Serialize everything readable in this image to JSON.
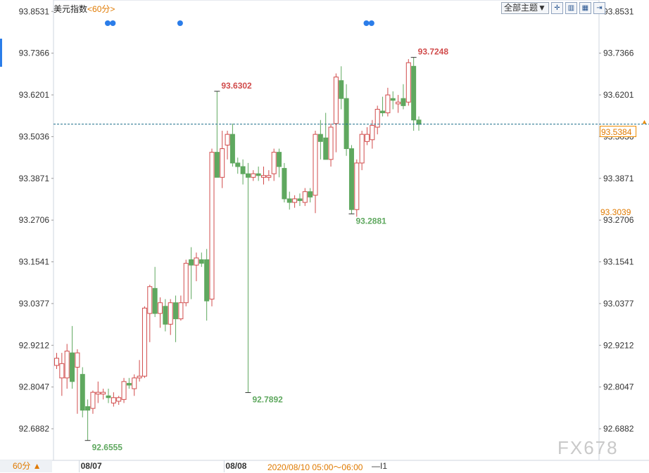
{
  "chart_data": {
    "type": "candlestick",
    "title": "美元指数",
    "period_label": "<60分>",
    "ylim": [
      92.6,
      93.885
    ],
    "y_ticks": [
      "93.8531",
      "93.7366",
      "93.6201",
      "93.5036",
      "93.3871",
      "93.2706",
      "93.1541",
      "93.0377",
      "92.9212",
      "92.8047",
      "92.6882"
    ],
    "x_labels": [
      {
        "label": "08/07",
        "index": 6
      },
      {
        "label": "08/08",
        "index": 34
      }
    ],
    "candles": [
      {
        "o": 92.865,
        "h": 92.9,
        "l": 92.855,
        "c": 92.885
      },
      {
        "o": 92.83,
        "h": 92.9,
        "l": 92.78,
        "c": 92.87
      },
      {
        "o": 92.83,
        "h": 92.925,
        "l": 92.8,
        "c": 92.905
      },
      {
        "o": 92.9,
        "h": 92.975,
        "l": 92.8,
        "c": 92.82
      },
      {
        "o": 92.86,
        "h": 92.91,
        "l": 92.73,
        "c": 92.9
      },
      {
        "o": 92.84,
        "h": 92.86,
        "l": 92.72,
        "c": 92.74
      },
      {
        "o": 92.75,
        "h": 92.77,
        "l": 92.656,
        "c": 92.74
      },
      {
        "o": 92.745,
        "h": 92.795,
        "l": 92.73,
        "c": 92.79
      },
      {
        "o": 92.785,
        "h": 92.82,
        "l": 92.76,
        "c": 92.79
      },
      {
        "o": 92.785,
        "h": 92.8,
        "l": 92.77,
        "c": 92.79
      },
      {
        "o": 92.78,
        "h": 92.8,
        "l": 92.76,
        "c": 92.775
      },
      {
        "o": 92.76,
        "h": 92.79,
        "l": 92.75,
        "c": 92.775
      },
      {
        "o": 92.765,
        "h": 92.78,
        "l": 92.755,
        "c": 92.775
      },
      {
        "o": 92.77,
        "h": 92.83,
        "l": 92.76,
        "c": 92.82
      },
      {
        "o": 92.815,
        "h": 92.83,
        "l": 92.8,
        "c": 92.81
      },
      {
        "o": 92.8,
        "h": 92.84,
        "l": 92.78,
        "c": 92.83
      },
      {
        "o": 92.83,
        "h": 92.88,
        "l": 92.82,
        "c": 92.835
      },
      {
        "o": 92.835,
        "h": 93.03,
        "l": 92.83,
        "c": 93.025
      },
      {
        "o": 93.01,
        "h": 93.09,
        "l": 92.93,
        "c": 93.085
      },
      {
        "o": 93.08,
        "h": 93.14,
        "l": 93.0,
        "c": 93.01
      },
      {
        "o": 93.01,
        "h": 93.055,
        "l": 92.97,
        "c": 93.04
      },
      {
        "o": 93.03,
        "h": 93.05,
        "l": 92.96,
        "c": 92.98
      },
      {
        "o": 92.98,
        "h": 93.05,
        "l": 92.95,
        "c": 93.04
      },
      {
        "o": 93.04,
        "h": 93.06,
        "l": 92.93,
        "c": 92.995
      },
      {
        "o": 92.995,
        "h": 93.06,
        "l": 92.99,
        "c": 93.04
      },
      {
        "o": 93.04,
        "h": 93.16,
        "l": 93.03,
        "c": 93.15
      },
      {
        "o": 93.16,
        "h": 93.195,
        "l": 93.05,
        "c": 93.145
      },
      {
        "o": 93.145,
        "h": 93.18,
        "l": 93.1,
        "c": 93.165
      },
      {
        "o": 93.16,
        "h": 93.18,
        "l": 93.14,
        "c": 93.15
      },
      {
        "o": 93.16,
        "h": 93.19,
        "l": 92.99,
        "c": 93.045
      },
      {
        "o": 93.05,
        "h": 93.47,
        "l": 93.03,
        "c": 93.46
      },
      {
        "o": 93.46,
        "h": 93.63,
        "l": 93.39,
        "c": 93.39
      },
      {
        "o": 93.39,
        "h": 93.52,
        "l": 93.36,
        "c": 93.47
      },
      {
        "o": 93.48,
        "h": 93.52,
        "l": 93.44,
        "c": 93.51
      },
      {
        "o": 93.51,
        "h": 93.54,
        "l": 93.42,
        "c": 93.43
      },
      {
        "o": 93.43,
        "h": 93.445,
        "l": 93.4,
        "c": 93.42
      },
      {
        "o": 93.42,
        "h": 93.44,
        "l": 93.37,
        "c": 93.4
      },
      {
        "o": 93.4,
        "h": 93.43,
        "l": 92.789,
        "c": 93.39
      },
      {
        "o": 93.39,
        "h": 93.41,
        "l": 93.38,
        "c": 93.4
      },
      {
        "o": 93.4,
        "h": 93.42,
        "l": 93.38,
        "c": 93.395
      },
      {
        "o": 93.39,
        "h": 93.42,
        "l": 93.37,
        "c": 93.395
      },
      {
        "o": 93.39,
        "h": 93.41,
        "l": 93.38,
        "c": 93.395
      },
      {
        "o": 93.4,
        "h": 93.47,
        "l": 93.38,
        "c": 93.46
      },
      {
        "o": 93.46,
        "h": 93.47,
        "l": 93.39,
        "c": 93.42
      },
      {
        "o": 93.415,
        "h": 93.43,
        "l": 93.32,
        "c": 93.33
      },
      {
        "o": 93.33,
        "h": 93.35,
        "l": 93.3,
        "c": 93.32
      },
      {
        "o": 93.32,
        "h": 93.34,
        "l": 93.305,
        "c": 93.33
      },
      {
        "o": 93.33,
        "h": 93.345,
        "l": 93.31,
        "c": 93.325
      },
      {
        "o": 93.32,
        "h": 93.36,
        "l": 93.31,
        "c": 93.35
      },
      {
        "o": 93.35,
        "h": 93.36,
        "l": 93.32,
        "c": 93.335
      },
      {
        "o": 93.34,
        "h": 93.52,
        "l": 93.29,
        "c": 93.51
      },
      {
        "o": 93.51,
        "h": 93.55,
        "l": 93.44,
        "c": 93.49
      },
      {
        "o": 93.5,
        "h": 93.57,
        "l": 93.44,
        "c": 93.44
      },
      {
        "o": 93.44,
        "h": 93.54,
        "l": 93.42,
        "c": 93.53
      },
      {
        "o": 93.54,
        "h": 93.68,
        "l": 93.46,
        "c": 93.67
      },
      {
        "o": 93.66,
        "h": 93.7,
        "l": 93.58,
        "c": 93.61
      },
      {
        "o": 93.61,
        "h": 93.65,
        "l": 93.45,
        "c": 93.47
      },
      {
        "o": 93.47,
        "h": 93.48,
        "l": 93.288,
        "c": 93.3
      },
      {
        "o": 93.3,
        "h": 93.44,
        "l": 93.28,
        "c": 93.43
      },
      {
        "o": 93.43,
        "h": 93.52,
        "l": 93.41,
        "c": 93.51
      },
      {
        "o": 93.49,
        "h": 93.53,
        "l": 93.48,
        "c": 93.51
      },
      {
        "o": 93.495,
        "h": 93.55,
        "l": 93.47,
        "c": 93.535
      },
      {
        "o": 93.53,
        "h": 93.59,
        "l": 93.51,
        "c": 93.58
      },
      {
        "o": 93.575,
        "h": 93.615,
        "l": 93.56,
        "c": 93.57
      },
      {
        "o": 93.57,
        "h": 93.64,
        "l": 93.56,
        "c": 93.62
      },
      {
        "o": 93.61,
        "h": 93.63,
        "l": 93.58,
        "c": 93.605
      },
      {
        "o": 93.595,
        "h": 93.62,
        "l": 93.57,
        "c": 93.6
      },
      {
        "o": 93.61,
        "h": 93.65,
        "l": 93.58,
        "c": 93.59
      },
      {
        "o": 93.6,
        "h": 93.72,
        "l": 93.59,
        "c": 93.71
      },
      {
        "o": 93.7,
        "h": 93.725,
        "l": 93.52,
        "c": 93.55
      },
      {
        "o": 93.55,
        "h": 93.56,
        "l": 93.52,
        "c": 93.538
      }
    ],
    "annotations": [
      {
        "label": "93.6302",
        "index": 31,
        "value": 93.6302,
        "type": "high"
      },
      {
        "label": "93.7248",
        "index": 69,
        "value": 93.7248,
        "type": "high"
      },
      {
        "label": "92.6555",
        "index": 6,
        "value": 92.6555,
        "type": "low"
      },
      {
        "label": "92.7892",
        "index": 37,
        "value": 92.7892,
        "type": "low"
      },
      {
        "label": "93.2881",
        "index": 57,
        "value": 93.2881,
        "type": "low"
      }
    ],
    "event_dots": [
      10,
      11,
      24,
      60,
      61
    ],
    "current_price": {
      "label": "93.5384",
      "value": 93.5384
    },
    "secondary_price": {
      "label": "93.3039",
      "value": 93.3039
    },
    "colors": {
      "up": "#d14b4b",
      "down": "#5fa85f",
      "annotation_up": "#d14b4b",
      "annotation_down": "#5fa85f",
      "current_line": "#1f6f8b",
      "accent": "#f08c00",
      "dot": "#2b7de9"
    }
  },
  "toolbar": {
    "theme_label": "全部主题▼",
    "buttons": [
      {
        "name": "crosshair-button",
        "icon": "crosshair-icon",
        "glyph": "✛"
      },
      {
        "name": "candle-type-button",
        "icon": "candle-icon",
        "glyph": "▥"
      },
      {
        "name": "indicator-button",
        "icon": "indicator-icon",
        "glyph": "▦"
      },
      {
        "name": "export-button",
        "icon": "export-icon",
        "glyph": "⇥"
      }
    ]
  },
  "bottom": {
    "period_button": "60分 ▲",
    "range_label": "2020/08/10 05:00～06:00",
    "range_suffix": "—I1"
  },
  "watermark": "FX678"
}
